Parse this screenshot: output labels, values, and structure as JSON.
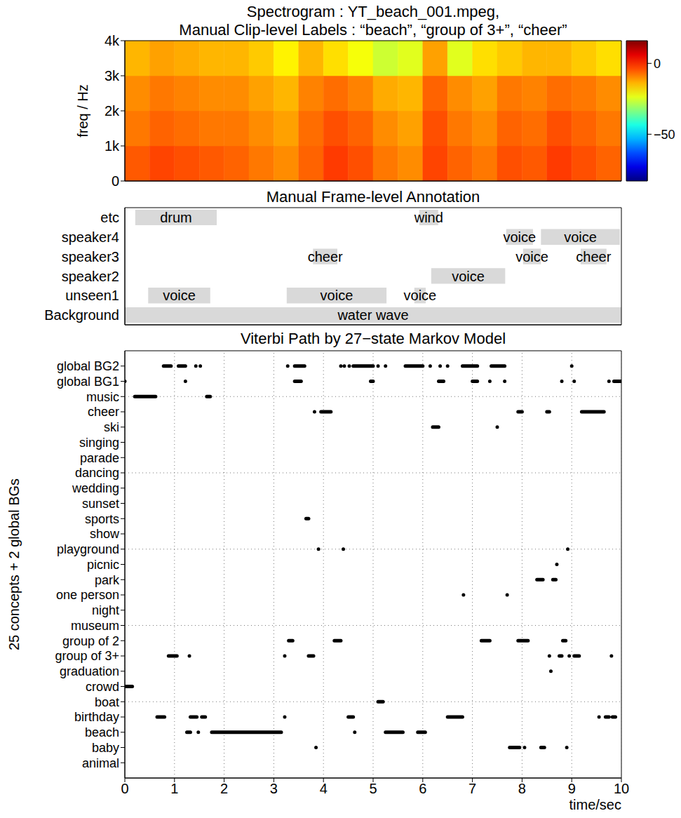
{
  "chart_data": [
    {
      "type": "heatmap",
      "title": "Spectrogram : YT_beach_001.mpeg,",
      "subtitle": "Manual Clip-level Labels : “beach”, “group of 3+”, “cheer”",
      "ylabel": "freq / Hz",
      "xlim": [
        0,
        10
      ],
      "xticks": [
        0,
        1,
        2,
        3,
        4,
        5,
        6,
        7,
        8,
        9,
        10
      ],
      "ylim": [
        0,
        4000
      ],
      "yticks": [
        0,
        {
          "value": 1000,
          "label": "1k"
        },
        {
          "value": 2000,
          "label": "2k"
        },
        {
          "value": 3000,
          "label": "3k"
        },
        {
          "value": 4000,
          "label": "4k"
        }
      ],
      "tick_labels": "y",
      "x": [
        0,
        0.5,
        1,
        1.5,
        2,
        2.5,
        3,
        3.5,
        4,
        4.5,
        5,
        5.5,
        6,
        6.5,
        7,
        7.5,
        8,
        8.5,
        9,
        9.5,
        10
      ],
      "y": [
        0,
        1000,
        2000,
        3000,
        4000
      ],
      "values": [
        [
          -5,
          -3,
          -4,
          -5,
          -6,
          -8,
          -10,
          -6,
          -2,
          -4,
          -8,
          -10,
          -3,
          -6,
          -8,
          -4,
          -5,
          -2,
          -4,
          -6
        ],
        [
          -8,
          -6,
          -7,
          -8,
          -8,
          -10,
          -12,
          -7,
          -4,
          -6,
          -10,
          -12,
          -4,
          -8,
          -10,
          -6,
          -7,
          -4,
          -6,
          -8
        ],
        [
          -10,
          -8,
          -9,
          -10,
          -10,
          -12,
          -14,
          -9,
          -7,
          -9,
          -13,
          -14,
          -6,
          -10,
          -12,
          -8,
          -9,
          -7,
          -8,
          -10
        ],
        [
          -14,
          -12,
          -13,
          -14,
          -14,
          -16,
          -20,
          -14,
          -18,
          -22,
          -26,
          -24,
          -12,
          -24,
          -18,
          -16,
          -14,
          -14,
          -16,
          -18
        ]
      ],
      "colorbar": {
        "range": [
          -83,
          16
        ],
        "ticks": [
          0,
          {
            "value": -50,
            "label": "−50"
          }
        ]
      }
    },
    {
      "type": "timeline",
      "title": "Manual Frame-level Annotation",
      "categories": [
        "etc",
        "speaker4",
        "speaker3",
        "speaker2",
        "unseen1",
        "Background"
      ],
      "xlim": [
        0,
        10
      ],
      "xticks": [
        0,
        1,
        2,
        3,
        4,
        5,
        6,
        7,
        8,
        9,
        10
      ],
      "tick_labels": "y",
      "color": "#d9d9d9",
      "segments": [
        {
          "category": "etc",
          "start": 0.21,
          "end": 1.85,
          "label": "drum"
        },
        {
          "category": "etc",
          "start": 5.93,
          "end": 6.31,
          "label": "wind"
        },
        {
          "category": "speaker4",
          "start": 7.68,
          "end": 8.22,
          "label": "voice"
        },
        {
          "category": "speaker4",
          "start": 8.38,
          "end": 9.97,
          "label": "voice"
        },
        {
          "category": "speaker3",
          "start": 3.79,
          "end": 4.28,
          "label": "cheer"
        },
        {
          "category": "speaker3",
          "start": 8.02,
          "end": 8.38,
          "label": "voice"
        },
        {
          "category": "speaker3",
          "start": 9.18,
          "end": 9.7,
          "label": "cheer"
        },
        {
          "category": "speaker2",
          "start": 6.17,
          "end": 7.66,
          "label": "voice"
        },
        {
          "category": "unseen1",
          "start": 0.47,
          "end": 1.72,
          "label": "voice"
        },
        {
          "category": "unseen1",
          "start": 3.26,
          "end": 5.27,
          "label": "voice"
        },
        {
          "category": "unseen1",
          "start": 5.83,
          "end": 6.06,
          "label": "voice"
        },
        {
          "category": "Background",
          "start": 0,
          "end": 10,
          "label": "water wave"
        }
      ]
    },
    {
      "type": "line",
      "title": "Viterbi Path by 27−state Markov Model",
      "xlabel": "time/sec",
      "ylabel": "25 concepts + 2 global BGs",
      "xlim": [
        0,
        10
      ],
      "xticks": [
        0,
        1,
        2,
        3,
        4,
        5,
        6,
        7,
        8,
        9,
        10
      ],
      "ylim": [
        0,
        28
      ],
      "grid": true,
      "color": "#000000",
      "yticks": [
        {
          "value": 27,
          "label": "global BG2"
        },
        {
          "value": 26,
          "label": "global BG1"
        },
        {
          "value": 25,
          "label": "music"
        },
        {
          "value": 24,
          "label": "cheer"
        },
        {
          "value": 23,
          "label": "ski"
        },
        {
          "value": 22,
          "label": "singing"
        },
        {
          "value": 21,
          "label": "parade"
        },
        {
          "value": 20,
          "label": "dancing"
        },
        {
          "value": 19,
          "label": "wedding"
        },
        {
          "value": 18,
          "label": "sunset"
        },
        {
          "value": 17,
          "label": "sports"
        },
        {
          "value": 16,
          "label": "show"
        },
        {
          "value": 15,
          "label": "playground"
        },
        {
          "value": 14,
          "label": "picnic"
        },
        {
          "value": 13,
          "label": "park"
        },
        {
          "value": 12,
          "label": "one person"
        },
        {
          "value": 11,
          "label": "night"
        },
        {
          "value": 10,
          "label": "museum"
        },
        {
          "value": 9,
          "label": "group of 2"
        },
        {
          "value": 8,
          "label": "group of 3+"
        },
        {
          "value": 7,
          "label": "graduation"
        },
        {
          "value": 6,
          "label": "crowd"
        },
        {
          "value": 5,
          "label": "boat"
        },
        {
          "value": 4,
          "label": "birthday"
        },
        {
          "value": 3,
          "label": "beach"
        },
        {
          "value": 2,
          "label": "baby"
        },
        {
          "value": 1,
          "label": "animal"
        }
      ],
      "intervals": [
        [
          [
            0.78,
            0.93
          ],
          [
            1.08,
            1.22
          ],
          [
            1.43,
            1.43
          ],
          [
            1.52,
            1.52
          ],
          [
            3.28,
            3.28
          ],
          [
            3.42,
            3.62
          ],
          [
            4.35,
            4.35
          ],
          [
            4.42,
            4.42
          ],
          [
            4.52,
            4.52
          ],
          [
            4.6,
            5.0
          ],
          [
            5.1,
            5.1
          ],
          [
            5.25,
            5.25
          ],
          [
            5.65,
            6.0
          ],
          [
            6.15,
            6.15
          ],
          [
            6.35,
            6.35
          ],
          [
            6.5,
            6.5
          ],
          [
            6.8,
            7.1
          ],
          [
            7.38,
            7.65
          ],
          [
            9.0,
            9.0
          ]
        ],
        [
          [
            0.0,
            0.0
          ],
          [
            1.22,
            1.22
          ],
          [
            3.42,
            3.55
          ],
          [
            4.95,
            5.0
          ],
          [
            6.32,
            6.42
          ],
          [
            7.0,
            7.1
          ],
          [
            7.35,
            7.35
          ],
          [
            7.65,
            7.65
          ],
          [
            8.8,
            8.8
          ],
          [
            9.05,
            9.05
          ],
          [
            9.75,
            9.75
          ],
          [
            9.85,
            10.0
          ]
        ],
        [
          [
            0.2,
            0.62
          ],
          [
            1.65,
            1.72
          ]
        ],
        [
          [
            3.82,
            3.82
          ],
          [
            3.95,
            4.15
          ],
          [
            7.92,
            8.0
          ],
          [
            8.5,
            8.55
          ],
          [
            9.2,
            9.65
          ]
        ],
        [
          [
            6.2,
            6.32
          ],
          [
            7.5,
            7.5
          ]
        ],
        [],
        [],
        [],
        [],
        [],
        [
          [
            3.65,
            3.7
          ]
        ],
        [],
        [
          [
            3.9,
            3.9
          ],
          [
            4.4,
            4.4
          ],
          [
            8.92,
            8.92
          ]
        ],
        [
          [
            8.7,
            8.7
          ]
        ],
        [
          [
            8.3,
            8.42
          ],
          [
            8.62,
            8.68
          ]
        ],
        [
          [
            6.82,
            6.82
          ],
          [
            7.7,
            7.7
          ]
        ],
        [],
        [],
        [
          [
            3.3,
            3.38
          ],
          [
            4.22,
            4.35
          ],
          [
            7.18,
            7.35
          ],
          [
            7.92,
            8.12
          ],
          [
            8.82,
            8.88
          ]
        ],
        [
          [
            0.88,
            1.05
          ],
          [
            1.3,
            1.3
          ],
          [
            3.22,
            3.22
          ],
          [
            3.7,
            3.8
          ],
          [
            8.55,
            8.55
          ],
          [
            8.75,
            8.8
          ],
          [
            8.95,
            8.95
          ],
          [
            9.05,
            9.15
          ],
          [
            9.8,
            9.8
          ]
        ],
        [
          [
            8.58,
            8.58
          ]
        ],
        [
          [
            0.0,
            0.15
          ]
        ],
        [
          [
            5.1,
            5.2
          ]
        ],
        [
          [
            0.65,
            0.8
          ],
          [
            1.32,
            1.45
          ],
          [
            1.55,
            1.62
          ],
          [
            3.22,
            3.22
          ],
          [
            4.5,
            4.6
          ],
          [
            6.5,
            6.8
          ],
          [
            9.55,
            9.55
          ],
          [
            9.68,
            9.75
          ],
          [
            9.82,
            9.88
          ]
        ],
        [
          [
            1.25,
            1.32
          ],
          [
            1.48,
            1.48
          ],
          [
            1.75,
            3.15
          ],
          [
            4.63,
            4.63
          ],
          [
            5.25,
            5.6
          ],
          [
            5.9,
            6.05
          ]
        ],
        [
          [
            3.85,
            3.85
          ],
          [
            7.75,
            7.95
          ],
          [
            8.05,
            8.05
          ],
          [
            8.38,
            8.45
          ],
          [
            8.9,
            8.9
          ]
        ],
        []
      ]
    }
  ]
}
